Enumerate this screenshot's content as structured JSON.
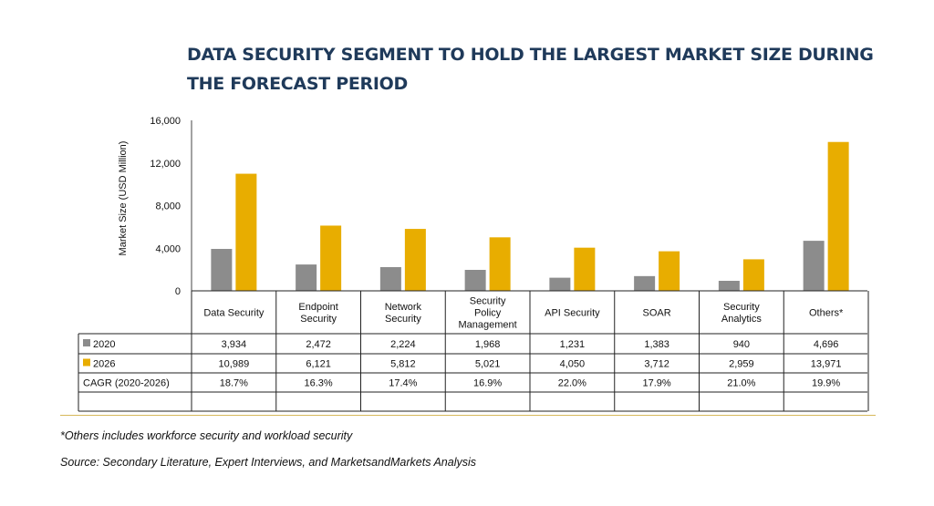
{
  "title": "DATA SECURITY SEGMENT TO HOLD THE LARGEST MARKET SIZE DURING THE FORECAST PERIOD",
  "footnote": "*Others includes workforce security and workload security",
  "source": "Source: Secondary Literature, Expert Interviews, and MarketsandMarkets Analysis",
  "colors": {
    "series_2020": "#8c8c8c",
    "series_2026": "#e8ad00",
    "rule": "#d7b85a",
    "title": "#1f3a5a"
  },
  "chart_data": {
    "type": "bar",
    "title": "DATA SECURITY SEGMENT TO HOLD THE LARGEST MARKET SIZE DURING THE FORECAST PERIOD",
    "ylabel": "Market Size (USD Million)",
    "xlabel": "",
    "ylim": [
      0,
      16000
    ],
    "yticks": [
      "0",
      "4,000",
      "8,000",
      "12,000",
      "16,000"
    ],
    "grid": false,
    "categories": [
      [
        "Data Security"
      ],
      [
        "Endpoint",
        "Security"
      ],
      [
        "Network",
        "Security"
      ],
      [
        "Security",
        "Policy",
        "Management"
      ],
      [
        "API Security"
      ],
      [
        "SOAR"
      ],
      [
        "Security",
        "Analytics"
      ],
      [
        "Others*"
      ]
    ],
    "series": [
      {
        "name": "2020",
        "values": [
          3934,
          2472,
          2224,
          1968,
          1231,
          1383,
          940,
          4696
        ],
        "labels": [
          "3,934",
          "2,472",
          "2,224",
          "1,968",
          "1,231",
          "1,383",
          "940",
          "4,696"
        ]
      },
      {
        "name": "2026",
        "values": [
          10989,
          6121,
          5812,
          5021,
          4050,
          3712,
          2959,
          13971
        ],
        "labels": [
          "10,989",
          "6,121",
          "5,812",
          "5,021",
          "4,050",
          "3,712",
          "2,959",
          "13,971"
        ]
      }
    ],
    "cagr": {
      "label": "CAGR (2020-2026)",
      "values": [
        "18.7%",
        "16.3%",
        "17.4%",
        "16.9%",
        "22.0%",
        "17.9%",
        "21.0%",
        "19.9%"
      ]
    }
  }
}
